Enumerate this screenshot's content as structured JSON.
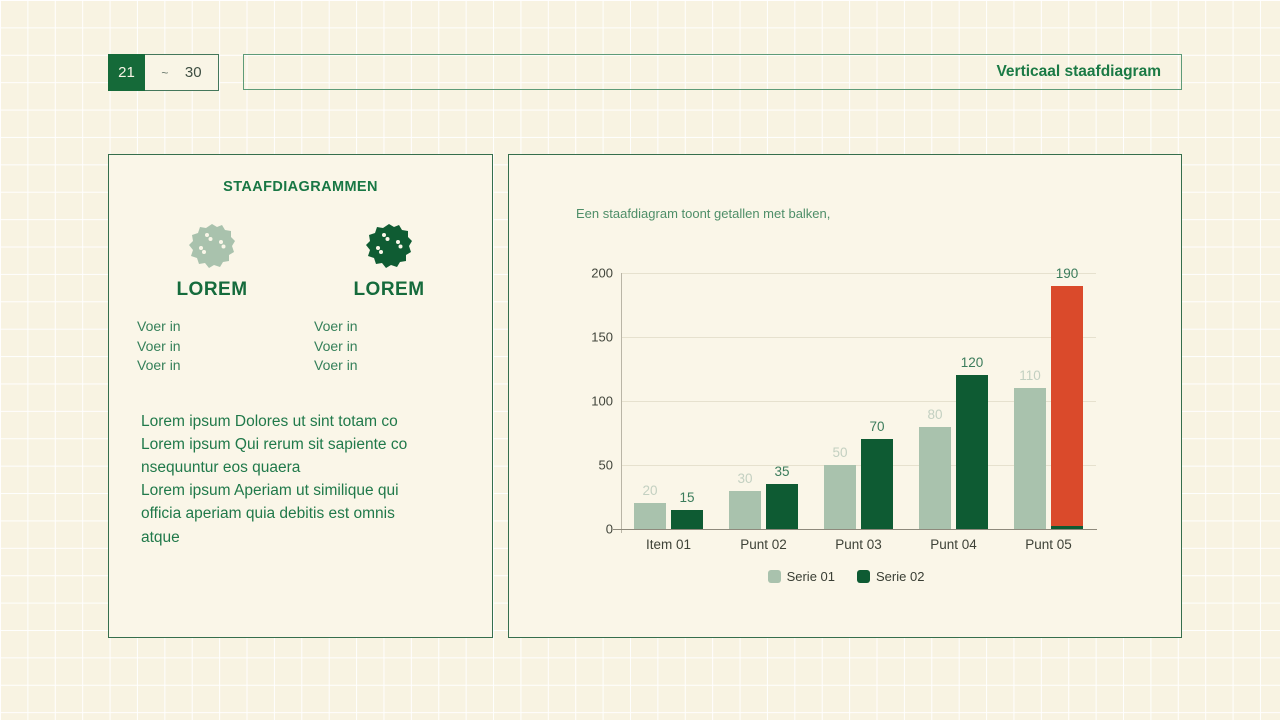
{
  "page": {
    "pager": {
      "current": "21",
      "separator": "~",
      "total": "30"
    },
    "title": "Verticaal staafdiagram"
  },
  "left_panel": {
    "heading": "STAAFDIAGRAMMEN",
    "columns": [
      {
        "icon": "blob-icon-light",
        "title": "LOREM",
        "items": [
          "Voer in",
          "Voer in",
          "Voer in"
        ]
      },
      {
        "icon": "blob-icon-dark",
        "title": "LOREM",
        "items": [
          "Voer in",
          "Voer in",
          "Voer in"
        ]
      }
    ],
    "paragraph": "Lorem ipsum Dolores ut sint totam co\nLorem ipsum Qui rerum sit sapiente co\nnsequuntur eos quaera\nLorem ipsum Aperiam ut similique qui\nofficia aperiam quia debitis est omnis\natque"
  },
  "right_panel": {
    "caption": "Een staafdiagram toont getallen met balken,"
  },
  "chart_data": {
    "type": "bar",
    "title": "",
    "xlabel": "",
    "ylabel": "",
    "categories": [
      "Item 01",
      "Punt 02",
      "Punt 03",
      "Punt 04",
      "Punt 05"
    ],
    "series": [
      {
        "name": "Serie 01",
        "values": [
          20,
          30,
          50,
          80,
          110
        ],
        "color": "#a9c2ad",
        "label_color": "#c3d0c1"
      },
      {
        "name": "Serie 02",
        "values": [
          15,
          35,
          70,
          120,
          190
        ],
        "color": "#0e5b33",
        "label_color": "#3b7c5b"
      }
    ],
    "highlight": {
      "series": 1,
      "index": 4,
      "color": "#da4a2b"
    },
    "ylim": [
      0,
      200
    ],
    "yticks": [
      0,
      50,
      100,
      150,
      200
    ],
    "grid": true,
    "legend_position": "bottom"
  },
  "colors": {
    "background": "#f8f3e2",
    "panel": "#faf6e8",
    "accent_dark_green": "#156a39",
    "accent_sage": "#a9c2ad",
    "accent_red": "#da4a2b",
    "border_green": "#356e4c"
  }
}
